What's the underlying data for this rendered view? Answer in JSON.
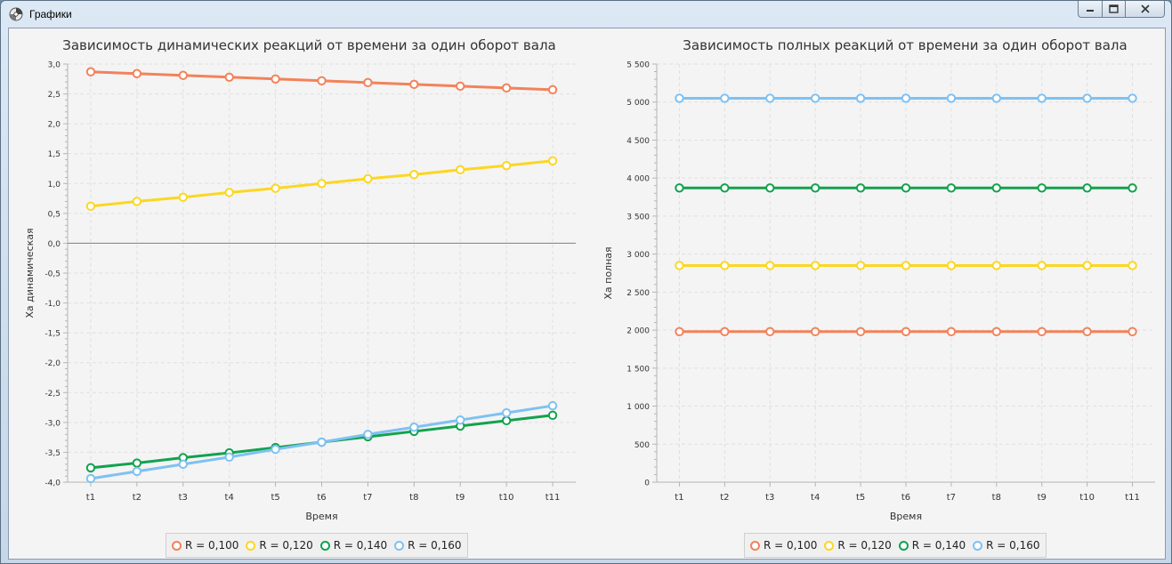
{
  "window": {
    "title": "Графики",
    "icons": {
      "app": "app-logo-icon",
      "minimize": "minimize-icon",
      "maximize": "maximize-icon",
      "close": "close-icon"
    }
  },
  "colors": {
    "series": [
      "#f3825a",
      "#fbd722",
      "#12a24f",
      "#7fc1f2"
    ],
    "grid": "#e0e0e0",
    "axis": "#b5b5b5",
    "zero_line": "#8c8c8c"
  },
  "chart_data": [
    {
      "type": "line",
      "title": "Зависимость динамических реакций от времени за один оборот вала",
      "xlabel": "Время",
      "ylabel": "Xа динамическая",
      "ylim": [
        -4.0,
        3.0
      ],
      "y_ticks": [
        "3,0",
        "2,5",
        "2,0",
        "1,5",
        "1,0",
        "0,5",
        "0,0",
        "-0,5",
        "-1,0",
        "-1,5",
        "-2,0",
        "-2,5",
        "-3,0",
        "-3,5",
        "-4,0"
      ],
      "y_tick_values": [
        3.0,
        2.5,
        2.0,
        1.5,
        1.0,
        0.5,
        0.0,
        -0.5,
        -1.0,
        -1.5,
        -2.0,
        -2.5,
        -3.0,
        -3.5,
        -4.0
      ],
      "categories": [
        "t1",
        "t2",
        "t3",
        "t4",
        "t5",
        "t6",
        "t7",
        "t8",
        "t9",
        "t10",
        "t11"
      ],
      "grid": true,
      "legend_position": "bottom",
      "series": [
        {
          "name": "R = 0,100",
          "values": [
            2.87,
            2.84,
            2.81,
            2.78,
            2.75,
            2.72,
            2.69,
            2.66,
            2.63,
            2.6,
            2.57
          ]
        },
        {
          "name": "R = 0,120",
          "values": [
            0.62,
            0.7,
            0.77,
            0.85,
            0.92,
            1.0,
            1.08,
            1.15,
            1.23,
            1.3,
            1.38
          ]
        },
        {
          "name": "R = 0,140",
          "values": [
            -3.76,
            -3.68,
            -3.59,
            -3.51,
            -3.42,
            -3.33,
            -3.24,
            -3.15,
            -3.06,
            -2.97,
            -2.88
          ]
        },
        {
          "name": "R = 0,160",
          "values": [
            -3.94,
            -3.82,
            -3.7,
            -3.58,
            -3.45,
            -3.33,
            -3.2,
            -3.08,
            -2.96,
            -2.84,
            -2.72
          ]
        }
      ]
    },
    {
      "type": "line",
      "title": "Зависимость полных реакций от времени за один оборот вала",
      "xlabel": "Время",
      "ylabel": "Xа полная",
      "ylim": [
        0,
        5500
      ],
      "y_ticks": [
        "5 500",
        "5 000",
        "4 500",
        "4 000",
        "3 500",
        "3 000",
        "2 500",
        "2 000",
        "1 500",
        "1 000",
        "500",
        "0"
      ],
      "y_tick_values": [
        5500,
        5000,
        4500,
        4000,
        3500,
        3000,
        2500,
        2000,
        1500,
        1000,
        500,
        0
      ],
      "categories": [
        "t1",
        "t2",
        "t3",
        "t4",
        "t5",
        "t6",
        "t7",
        "t8",
        "t9",
        "t10",
        "t11"
      ],
      "grid": true,
      "legend_position": "bottom",
      "series": [
        {
          "name": "R = 0,100",
          "values": [
            1980,
            1980,
            1980,
            1980,
            1980,
            1980,
            1980,
            1980,
            1980,
            1980,
            1980
          ]
        },
        {
          "name": "R = 0,120",
          "values": [
            2850,
            2850,
            2850,
            2850,
            2850,
            2850,
            2850,
            2850,
            2850,
            2850,
            2850
          ]
        },
        {
          "name": "R = 0,140",
          "values": [
            3870,
            3870,
            3870,
            3870,
            3870,
            3870,
            3870,
            3870,
            3870,
            3870,
            3870
          ]
        },
        {
          "name": "R = 0,160",
          "values": [
            5050,
            5050,
            5050,
            5050,
            5050,
            5050,
            5050,
            5050,
            5050,
            5050,
            5050
          ]
        }
      ]
    }
  ]
}
